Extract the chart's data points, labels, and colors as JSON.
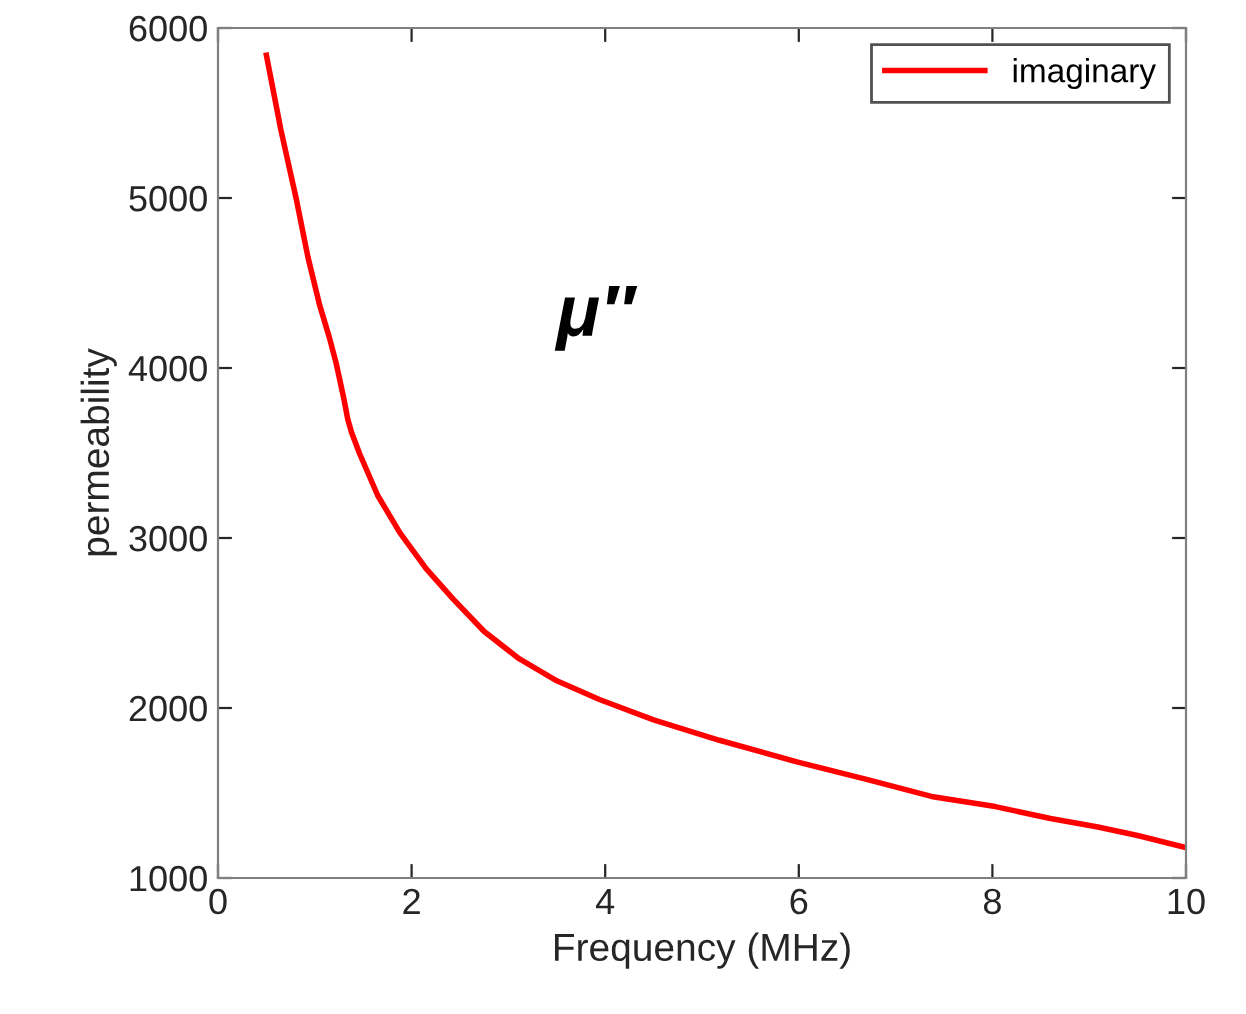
{
  "chart_data": {
    "type": "line",
    "xlabel": "Frequency (MHz)",
    "ylabel": "permeability",
    "annotations": [
      "μ′′"
    ],
    "series": [
      {
        "name": "imaginary",
        "color": "#ff0000",
        "x": [
          0.5,
          0.65,
          0.81,
          0.93,
          1.05,
          1.15,
          1.22,
          1.3,
          1.34,
          1.38,
          1.46,
          1.65,
          1.88,
          2.15,
          2.43,
          2.75,
          3.11,
          3.5,
          3.94,
          4.5,
          5.18,
          6.0,
          6.7,
          7.37,
          8.03,
          8.6,
          9.09,
          9.5,
          9.99
        ],
        "values": [
          5840,
          5400,
          4990,
          4650,
          4370,
          4180,
          4030,
          3820,
          3700,
          3620,
          3500,
          3250,
          3030,
          2820,
          2640,
          2450,
          2290,
          2160,
          2050,
          1930,
          1810,
          1680,
          1580,
          1480,
          1420,
          1350,
          1300,
          1250,
          1180
        ]
      }
    ],
    "xlim": [
      0,
      10
    ],
    "ylim": [
      1000,
      6000
    ],
    "xticks": [
      0,
      2,
      4,
      6,
      8,
      10
    ],
    "yticks": [
      1000,
      2000,
      3000,
      4000,
      5000,
      6000
    ],
    "legend": "top right",
    "grid": false
  }
}
